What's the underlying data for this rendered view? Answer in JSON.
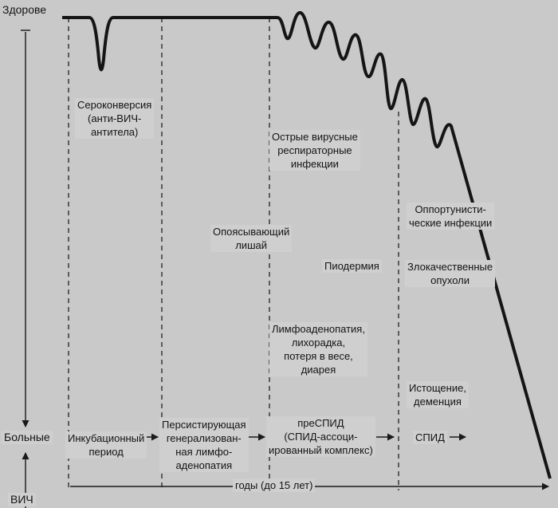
{
  "diagram": {
    "states": {
      "healthy": "Здорове",
      "sick": "Больные",
      "hiv": "ВИЧ"
    },
    "events": {
      "seroconversion": "Сероконверсия\n(анти-ВИЧ-\nантитела)",
      "acute_viral": "Острые вирусные\nреспираторные\nинфекции",
      "opportunistic": "Оппортунисти-\nческие инфекции",
      "herpes_zoster": "Опоясывающий\nлишай",
      "pyoderma": "Пиодермия",
      "malignant": "Злокачественные\nопухоли",
      "lymphadenopathy": "Лимфоаденопатия,\nлихорадка,\nпотеря в весе,\nдиарея",
      "wasting": "Истощение,\nдеменция"
    },
    "stages": [
      "Инкубационный\nпериод",
      "Персистирующая\nгенерализован-\nная лимфо-\nаденопатия",
      "преСПИД\n(СПИД-ассоци-\nированный комплекс)",
      "СПИД"
    ],
    "time_axis": "годы (до 15 лет)"
  }
}
